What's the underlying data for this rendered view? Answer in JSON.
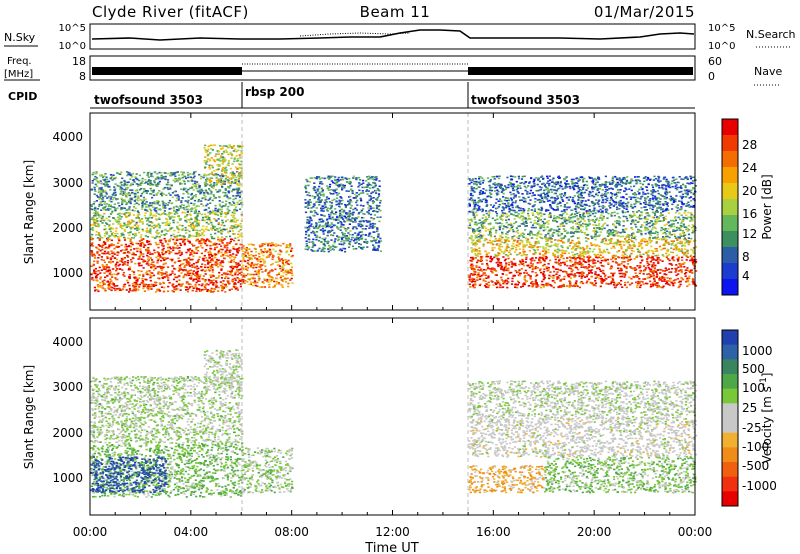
{
  "header": {
    "station": "Clyde River (fitACF)",
    "beam": "Beam 11",
    "date": "01/Mar/2015"
  },
  "noise_panel": {
    "left_label": "N.Sky",
    "left_ticks": [
      "10^5",
      "10^0"
    ],
    "right_ticks": [
      "10^5",
      "10^0"
    ],
    "right_label": "N.Search"
  },
  "freq_panel": {
    "left_label_line1": "Freq.",
    "left_label_line2": "[MHz]",
    "left_ticks": [
      "18",
      "8"
    ],
    "right_ticks": [
      "60",
      "0"
    ],
    "right_label": "Nave"
  },
  "cpid": {
    "label": "CPID",
    "segments": [
      {
        "name": "twofsound 3503",
        "start_hour": 0,
        "end_hour": 6
      },
      {
        "name": "rbsp 200",
        "start_hour": 6,
        "end_hour": 15
      },
      {
        "name": "twofsound 3503",
        "start_hour": 15,
        "end_hour": 24
      }
    ]
  },
  "xaxis": {
    "label": "Time UT",
    "tick_labels": [
      "00:00",
      "04:00",
      "08:00",
      "12:00",
      "16:00",
      "20:00",
      "00:00"
    ],
    "tick_hours": [
      0,
      4,
      8,
      12,
      16,
      20,
      24
    ]
  },
  "power_panel": {
    "ylabel": "Slant Range [km]",
    "y_ticks": [
      "4000",
      "3000",
      "2000",
      "1000"
    ],
    "colorbar_label": "Power [dB]",
    "colorbar_ticks": [
      "28",
      "24",
      "20",
      "16",
      "12",
      "8",
      "4"
    ],
    "colorbar_colors": [
      "#e80000",
      "#f03a00",
      "#f56c00",
      "#f8a000",
      "#e8c818",
      "#a8d040",
      "#64b85c",
      "#3c9060",
      "#2c5ea8",
      "#1c3cd0",
      "#0c14f0"
    ]
  },
  "velocity_panel": {
    "ylabel": "Slant Range [km]",
    "y_ticks": [
      "4000",
      "3000",
      "2000",
      "1000"
    ],
    "colorbar_label": "Velocity [m s^-1]",
    "colorbar_ticks": [
      "1000",
      "500",
      "100",
      "25",
      "-25",
      "-100",
      "-500",
      "-1000"
    ],
    "colorbar_colors": [
      "#2040b0",
      "#2e62a8",
      "#3a8460",
      "#4ea848",
      "#78c838",
      "#c8c8c8",
      "#c8c8c8",
      "#f0b030",
      "#f08c18",
      "#f06010",
      "#f03010",
      "#e80000"
    ]
  },
  "chart_data": {
    "type": "heatmap",
    "title": "Clyde River (fitACF)",
    "subtitle": "Beam 11",
    "date_label": "01/Mar/2015",
    "xlabel": "Time UT",
    "ylabel": "Slant Range [km]",
    "xlim_hours": [
      0,
      24
    ],
    "ylim_km": [
      180,
      4600
    ],
    "panels": [
      {
        "name": "Power",
        "unit": "dB",
        "colorbar_range": [
          0,
          30
        ],
        "scatter_regions": [
          {
            "t_start": 0.0,
            "t_end": 6.0,
            "r_low": 600,
            "r_high": 1800,
            "level_dB": 26
          },
          {
            "t_start": 0.0,
            "t_end": 6.0,
            "r_low": 1800,
            "r_high": 2400,
            "level_dB": 14
          },
          {
            "t_start": 0.0,
            "t_end": 6.0,
            "r_low": 2400,
            "r_high": 3300,
            "level_dB": 10
          },
          {
            "t_start": 4.5,
            "t_end": 6.0,
            "r_low": 3000,
            "r_high": 3900,
            "level_dB": 16
          },
          {
            "t_start": 6.0,
            "t_end": 8.0,
            "r_low": 700,
            "r_high": 1700,
            "level_dB": 22
          },
          {
            "t_start": 8.5,
            "t_end": 11.5,
            "r_low": 1500,
            "r_high": 3200,
            "level_dB": 8
          },
          {
            "t_start": 15.0,
            "t_end": 24.0,
            "r_low": 700,
            "r_high": 1400,
            "level_dB": 27
          },
          {
            "t_start": 15.0,
            "t_end": 24.0,
            "r_low": 1400,
            "r_high": 1800,
            "level_dB": 18
          },
          {
            "t_start": 15.0,
            "t_end": 24.0,
            "r_low": 1800,
            "r_high": 2400,
            "level_dB": 12
          },
          {
            "t_start": 15.0,
            "t_end": 24.0,
            "r_low": 2400,
            "r_high": 3200,
            "level_dB": 7
          }
        ]
      },
      {
        "name": "Velocity",
        "unit": "m s^-1",
        "colorbar_range": [
          -1000,
          1000
        ],
        "scatter_regions": [
          {
            "t_start": 0.0,
            "t_end": 6.0,
            "r_low": 600,
            "r_high": 1800,
            "velocity": 300
          },
          {
            "t_start": 0.0,
            "t_end": 3.0,
            "r_low": 700,
            "r_high": 1500,
            "velocity": 900
          },
          {
            "t_start": 0.0,
            "t_end": 6.0,
            "r_low": 1800,
            "r_high": 3300,
            "velocity": 150
          },
          {
            "t_start": 4.5,
            "t_end": 6.0,
            "r_low": 3000,
            "r_high": 3900,
            "velocity": 100
          },
          {
            "t_start": 6.0,
            "t_end": 8.0,
            "r_low": 700,
            "r_high": 1700,
            "velocity": 200
          },
          {
            "t_start": 15.0,
            "t_end": 18.0,
            "r_low": 700,
            "r_high": 1300,
            "velocity": -300
          },
          {
            "t_start": 15.0,
            "t_end": 24.0,
            "r_low": 1500,
            "r_high": 2400,
            "velocity": 0
          },
          {
            "t_start": 18.0,
            "t_end": 24.0,
            "r_low": 700,
            "r_high": 1500,
            "velocity": 250
          },
          {
            "t_start": 15.0,
            "t_end": 24.0,
            "r_low": 2400,
            "r_high": 3200,
            "velocity": 100
          }
        ]
      }
    ]
  }
}
